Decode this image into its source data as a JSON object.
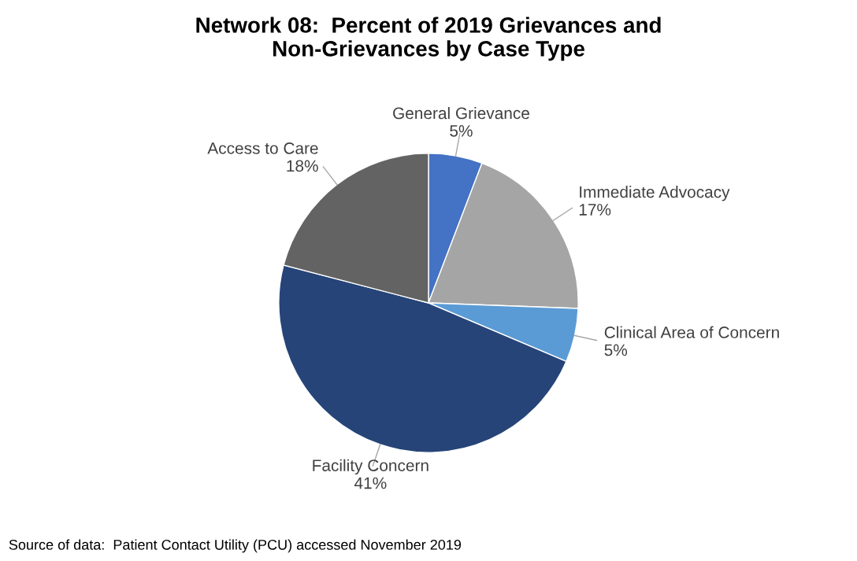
{
  "chart_data": {
    "type": "pie",
    "title": "Network 08:  Percent of 2019 Grievances and\nNon-Grievances by Case Type",
    "categories": [
      "General Grievance",
      "Immediate Advocacy",
      "Clinical Area of Concern",
      "Facility Concern",
      "Access to Care"
    ],
    "values": [
      5,
      17,
      5,
      41,
      18
    ],
    "colors": [
      "#4472c4",
      "#a5a5a5",
      "#5b9bd5",
      "#264478",
      "#636363"
    ],
    "value_labels": [
      "5%",
      "17%",
      "5%",
      "41%",
      "18%"
    ],
    "annotations": [
      "Source of data:  Patient Contact Utility (PCU) accessed November 2019"
    ]
  }
}
